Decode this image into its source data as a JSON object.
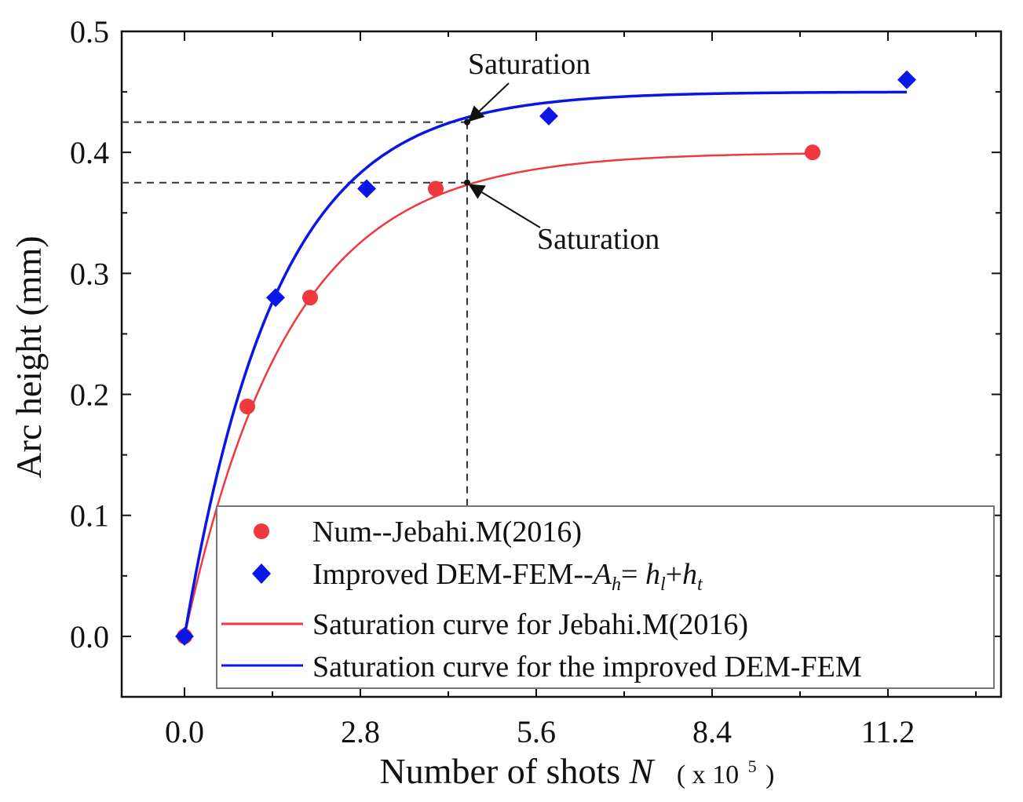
{
  "chart_data": {
    "type": "scatter",
    "xlabel": "Number of shots",
    "xlabel_var": "N",
    "xlabel_unit": "( x 10",
    "xlabel_unit_exp": "5",
    "xlabel_unit_close": ")",
    "ylabel": "Arc height (mm)",
    "xlim": [
      -1.0,
      13.0
    ],
    "ylim": [
      -0.05,
      0.5
    ],
    "x_ticks": [
      0.0,
      2.8,
      5.6,
      8.4,
      11.2
    ],
    "x_tick_labels": [
      "0.0",
      "2.8",
      "5.6",
      "8.4",
      "11.2"
    ],
    "y_ticks": [
      0.0,
      0.1,
      0.2,
      0.3,
      0.4,
      0.5
    ],
    "y_tick_labels": [
      "0.0",
      "0.1",
      "0.2",
      "0.3",
      "0.4",
      "0.5"
    ],
    "series": [
      {
        "name": "Num--Jebahi.M(2016)",
        "kind": "points",
        "marker": "circle",
        "color": "#f0393f",
        "x": [
          0.0,
          1.0,
          2.0,
          4.0,
          10.0
        ],
        "y": [
          0.0,
          0.19,
          0.28,
          0.37,
          0.4
        ]
      },
      {
        "name": "Improved DEM-FEM--Ah= hl+ht",
        "kind": "points",
        "marker": "diamond",
        "color": "#0a16e6",
        "x": [
          0.0,
          1.45,
          2.9,
          5.8,
          11.5
        ],
        "y": [
          0.0,
          0.28,
          0.37,
          0.43,
          0.46
        ]
      },
      {
        "name": "Saturation curve for Jebahi.M(2016)",
        "kind": "curve",
        "color": "#f0393f",
        "asymptote": 0.4,
        "rate": 0.6,
        "x_range": [
          0.0,
          10.0
        ]
      },
      {
        "name": "Saturation curve for the improved DEM-FEM",
        "kind": "curve",
        "color": "#0a16e6",
        "asymptote": 0.45,
        "rate": 0.68,
        "x_range": [
          0.0,
          11.5
        ]
      }
    ],
    "annotations": [
      {
        "text": "Saturation",
        "point": [
          4.5,
          0.425
        ]
      },
      {
        "text": "Saturation",
        "point": [
          4.5,
          0.375
        ]
      }
    ],
    "reference_lines": {
      "x": 4.5,
      "y": [
        0.425,
        0.375
      ]
    },
    "legend": {
      "position": "bottom-right",
      "entries": [
        {
          "label": "Num--Jebahi.M(2016)",
          "marker": "circle",
          "color": "#f0393f"
        },
        {
          "label_pre": "Improved DEM-FEM--",
          "label_a": "A",
          "label_a_sub": "h",
          "label_eq": "= ",
          "label_h1": "h",
          "label_h1_sub": "l",
          "label_plus": "+",
          "label_h2": "h",
          "label_h2_sub": "t",
          "marker": "diamond",
          "color": "#0a16e6"
        },
        {
          "label": "Saturation curve for Jebahi.M(2016)",
          "marker": "line",
          "color": "#f0393f"
        },
        {
          "label": "Saturation curve for the improved DEM-FEM",
          "marker": "line",
          "color": "#0a16e6"
        }
      ]
    }
  }
}
